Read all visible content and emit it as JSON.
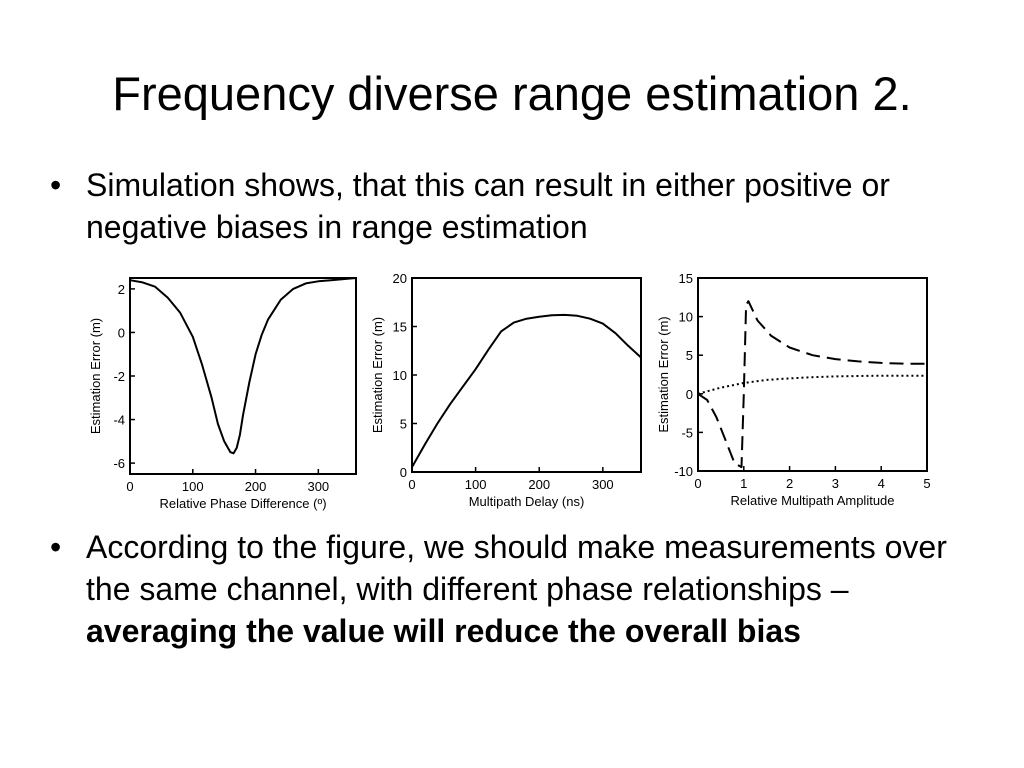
{
  "title": "Frequency diverse range estimation 2.",
  "bullets": [
    {
      "text": "Simulation shows, that this can result in either positive or negative biases in range estimation"
    },
    {
      "text": "According to the figure, we should make measurements over the same channel, with different phase relationships – ",
      "bold": "averaging the value will reduce the overall bias"
    }
  ],
  "chart_data": [
    {
      "type": "line",
      "xlabel": "Relative Phase Difference (º)",
      "ylabel": "Estimation Error (m)",
      "xlim": [
        0,
        360
      ],
      "ylim": [
        -6.5,
        2.5
      ],
      "xticks": [
        0,
        100,
        200,
        300
      ],
      "yticks": [
        -6,
        -4,
        -2,
        0,
        2
      ],
      "series": [
        {
          "style": "solid",
          "x": [
            0,
            20,
            40,
            60,
            80,
            100,
            115,
            130,
            140,
            150,
            160,
            165,
            170,
            175,
            180,
            190,
            200,
            210,
            220,
            240,
            260,
            280,
            300,
            320,
            340,
            360
          ],
          "y": [
            2.4,
            2.3,
            2.1,
            1.6,
            0.9,
            -0.2,
            -1.5,
            -3.0,
            -4.2,
            -5.0,
            -5.5,
            -5.55,
            -5.3,
            -4.7,
            -3.8,
            -2.3,
            -1.0,
            -0.1,
            0.6,
            1.5,
            2.0,
            2.25,
            2.35,
            2.4,
            2.45,
            2.5
          ]
        }
      ]
    },
    {
      "type": "line",
      "xlabel": "Multipath Delay (ns)",
      "ylabel": "Estimation Error (m)",
      "xlim": [
        0,
        360
      ],
      "ylim": [
        0,
        20
      ],
      "xticks": [
        0,
        100,
        200,
        300
      ],
      "yticks": [
        0,
        5,
        10,
        15,
        20
      ],
      "series": [
        {
          "style": "solid",
          "x": [
            0,
            20,
            40,
            60,
            80,
            100,
            120,
            140,
            160,
            180,
            200,
            220,
            240,
            260,
            280,
            300,
            320,
            340,
            360
          ],
          "y": [
            0.5,
            2.8,
            5.0,
            7.0,
            8.8,
            10.6,
            12.6,
            14.5,
            15.4,
            15.8,
            16.0,
            16.15,
            16.2,
            16.1,
            15.8,
            15.3,
            14.3,
            13.0,
            11.8
          ]
        }
      ]
    },
    {
      "type": "line",
      "xlabel": "Relative Multipath Amplitude",
      "ylabel": "Estimation Error (m)",
      "xlim": [
        0,
        5
      ],
      "ylim": [
        -10,
        15
      ],
      "xticks": [
        0,
        1,
        2,
        3,
        4,
        5
      ],
      "yticks": [
        -10,
        -5,
        0,
        5,
        10,
        15
      ],
      "series": [
        {
          "style": "dashed",
          "x": [
            0,
            0.2,
            0.4,
            0.6,
            0.8,
            0.95,
            1.0,
            1.05,
            1.1,
            1.3,
            1.6,
            2.0,
            2.5,
            3.0,
            3.5,
            4.0,
            4.5,
            5.0
          ],
          "y": [
            0,
            -0.8,
            -3.0,
            -6.0,
            -9.0,
            -9.5,
            0,
            11.5,
            12.0,
            9.5,
            7.5,
            6.0,
            5.0,
            4.5,
            4.2,
            4.0,
            3.9,
            3.9
          ]
        },
        {
          "style": "dotted",
          "x": [
            0,
            0.25,
            0.5,
            0.75,
            1.0,
            1.5,
            2.0,
            2.5,
            3.0,
            3.5,
            4.0,
            4.5,
            5.0
          ],
          "y": [
            0,
            0.4,
            0.8,
            1.1,
            1.4,
            1.8,
            2.0,
            2.15,
            2.25,
            2.3,
            2.35,
            2.35,
            2.35
          ]
        }
      ]
    }
  ]
}
